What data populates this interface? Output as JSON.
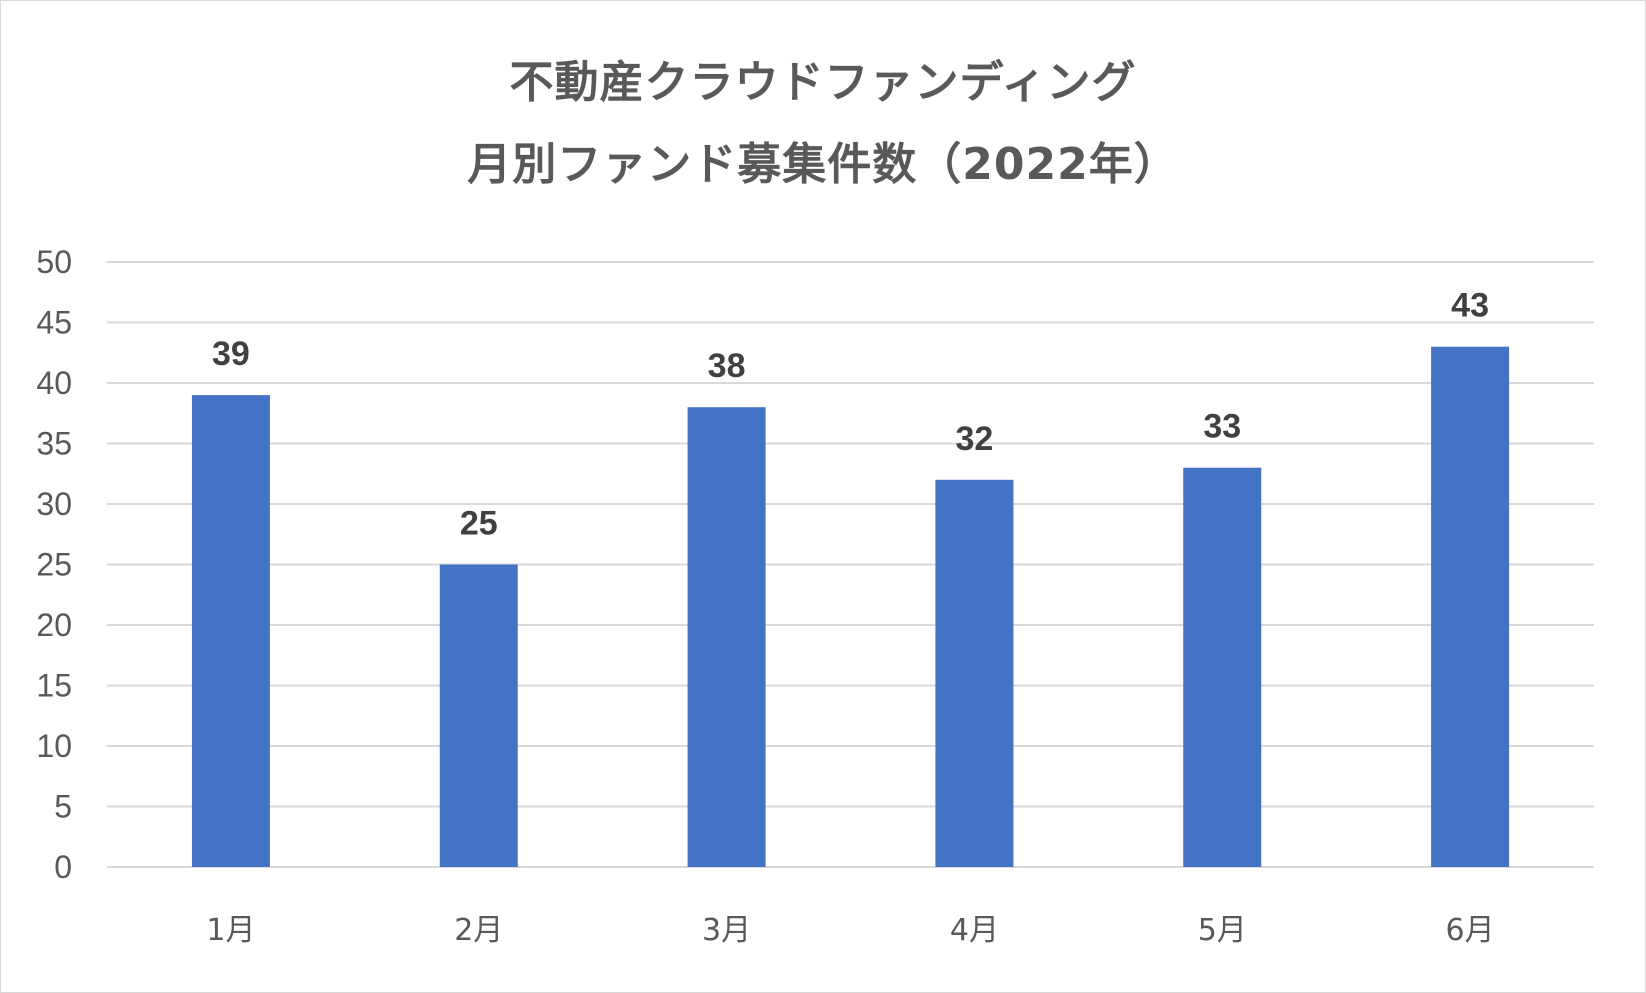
{
  "chart_data": {
    "type": "bar",
    "title": "不動産クラウドファンディング",
    "subtitle": "月別ファンド募集件数（2022年）",
    "categories": [
      "1月",
      "2月",
      "3月",
      "4月",
      "5月",
      "6月"
    ],
    "series": [
      {
        "values": [
          39,
          25,
          38,
          32,
          33,
          43
        ]
      }
    ],
    "data_labels": [
      "39",
      "25",
      "38",
      "32",
      "33",
      "43"
    ],
    "yticks": [
      "0",
      "5",
      "10",
      "15",
      "20",
      "25",
      "30",
      "35",
      "40",
      "45",
      "50"
    ],
    "ylim": [
      0,
      50
    ],
    "ytick_step": 5,
    "grid": true,
    "legend": "none",
    "bar_color": "#4472C4",
    "grid_color": "#d9d9d9"
  }
}
